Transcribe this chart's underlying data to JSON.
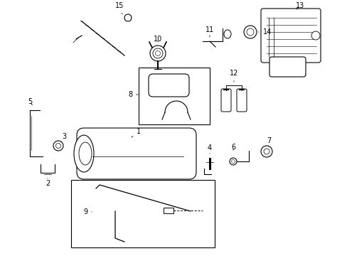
{
  "bg_color": "#ffffff",
  "fig_width": 4.89,
  "fig_height": 3.6,
  "dpi": 100,
  "lw": 0.8,
  "fs": 7,
  "color": "#000000"
}
